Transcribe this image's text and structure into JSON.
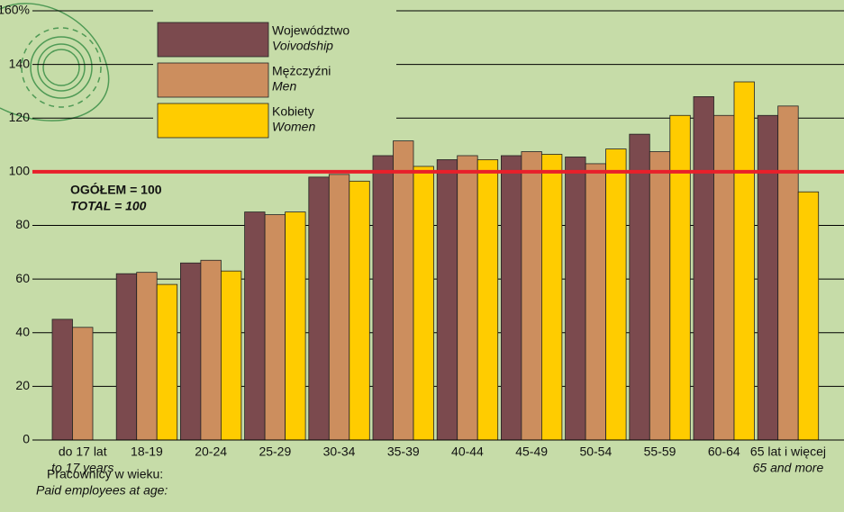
{
  "chart_data": {
    "type": "bar",
    "categories": [
      "do 17 lat",
      "18-19",
      "20-24",
      "25-29",
      "30-34",
      "35-39",
      "40-44",
      "45-49",
      "50-54",
      "55-59",
      "60-64",
      "65 lat i więcej"
    ],
    "categories_en": [
      "to 17 years",
      null,
      null,
      null,
      null,
      null,
      null,
      null,
      null,
      null,
      null,
      "65 and more"
    ],
    "series": [
      {
        "name": "Województwo",
        "name_en": "Voivodship",
        "color": "#7b4a4e",
        "values": [
          45,
          62,
          66,
          85,
          98,
          106,
          104.5,
          106,
          105.5,
          114,
          128,
          121
        ]
      },
      {
        "name": "Mężczyźni",
        "name_en": "Men",
        "color": "#cc8e5e",
        "values": [
          42,
          62.5,
          67,
          84,
          99,
          111.5,
          106,
          107.5,
          103,
          107.5,
          121,
          124.5
        ]
      },
      {
        "name": "Kobiety",
        "name_en": "Women",
        "color": "#ffcc00",
        "values": [
          null,
          58,
          63,
          85,
          96.5,
          102,
          104.5,
          106.5,
          108.5,
          121,
          133.5,
          92.5
        ]
      }
    ],
    "ylim": [
      0,
      160
    ],
    "yticks": [
      0,
      20,
      40,
      60,
      80,
      100,
      120,
      140,
      {
        "value": 160,
        "label": "160%"
      }
    ],
    "grid": true,
    "reference_line": {
      "value": 100,
      "label": "OGÓŁEM = 100",
      "label_en": "TOTAL = 100",
      "color": "#e8202a"
    },
    "xlabel": "Pracownicy w wieku:",
    "xlabel_en": "Paid employees at age:"
  }
}
